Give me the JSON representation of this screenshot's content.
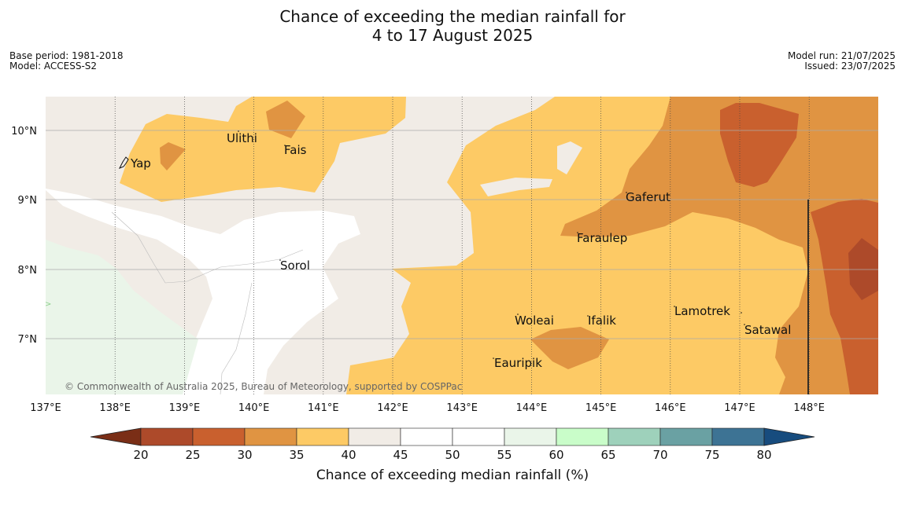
{
  "header": {
    "title_line1": "Chance of exceeding the median rainfall for",
    "title_line2": "4 to 17 August 2025",
    "base_period": "Base period: 1981-2018",
    "model": "Model: ACCESS-S2",
    "model_run": "Model run: 21/07/2025",
    "issued": "Issued: 23/07/2025"
  },
  "map": {
    "credit": "© Commonwealth of Australia 2025, Bureau of Meteorology, supported by COSPPac",
    "lon_labels": [
      "137°E",
      "138°E",
      "139°E",
      "140°E",
      "141°E",
      "142°E",
      "143°E",
      "144°E",
      "145°E",
      "146°E",
      "147°E",
      "148°E"
    ],
    "lat_labels": [
      "10°N",
      "9°N",
      "8°N",
      "7°N"
    ],
    "places": [
      "Yap",
      "Ulithi",
      "Fais",
      "Gaferut",
      "Faraulep",
      "Sorol",
      "Lamotrek",
      "Woleai",
      "Ifalik",
      "Satawal",
      "Eauripik"
    ]
  },
  "colorbar": {
    "title": "Chance of exceeding median rainfall (%)",
    "ticks": [
      "20",
      "25",
      "30",
      "35",
      "40",
      "45",
      "50",
      "55",
      "60",
      "65",
      "70",
      "75",
      "80"
    ],
    "colors": [
      "#7a2e16",
      "#ad4a2a",
      "#c9602e",
      "#e09442",
      "#fdca65",
      "#f1ece6",
      "#ffffff",
      "#ffffff",
      "#eaf5e9",
      "#c9fdc9",
      "#9ed1bb",
      "#6aa1a3",
      "#3d7394",
      "#174c7e"
    ]
  }
}
